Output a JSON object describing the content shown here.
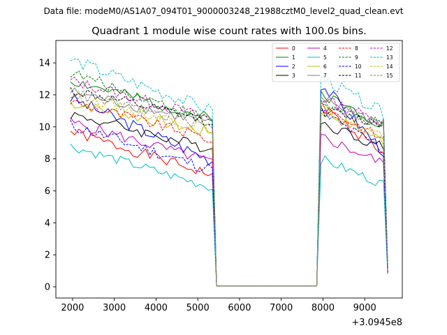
{
  "figure": {
    "suptitle": "Data file: modeM0/AS1A07_094T01_9000003248_21988cztM0_level2_quad_clean.evt"
  },
  "chart_data": {
    "type": "line",
    "title": "Quadrant 1 module wise count rates with 100.0s bins.",
    "xlabel": "",
    "ylabel": "",
    "x_offset_label": "+3.0945e8",
    "xlim": [
      1600,
      9900
    ],
    "ylim": [
      -0.7,
      15.4
    ],
    "xticks": [
      2000,
      3000,
      4000,
      5000,
      6000,
      7000,
      8000,
      9000
    ],
    "xtick_labels": [
      "2000",
      "3000",
      "4000",
      "5000",
      "6000",
      "7000",
      "8000",
      "9000"
    ],
    "yticks": [
      0,
      2,
      4,
      6,
      8,
      10,
      12,
      14
    ],
    "ytick_labels": [
      "0",
      "2",
      "4",
      "6",
      "8",
      "10",
      "12",
      "14"
    ],
    "grid": false,
    "legend": {
      "position": "top-right",
      "columns": 4
    },
    "segments": {
      "seg1": {
        "start": 1950,
        "end": 5350,
        "step": 100,
        "drop_to": 5450
      },
      "gap": {
        "start": 5450,
        "end": 7850,
        "value": 0
      },
      "seg2": {
        "start": 7950,
        "end": 9550,
        "step": 100
      }
    },
    "series": [
      {
        "name": "0",
        "color": "#ff0000",
        "linestyle": "solid",
        "level1": 9.7,
        "end1": 7.0,
        "level2": 11.3,
        "end2": 8.2,
        "wobble": 0.35,
        "seed": 1
      },
      {
        "name": "1",
        "color": "#008000",
        "linestyle": "solid",
        "level1": 12.9,
        "end1": 10.5,
        "level2": 12.1,
        "end2": 10.0,
        "wobble": 0.35,
        "seed": 2
      },
      {
        "name": "2",
        "color": "#0000ff",
        "linestyle": "solid",
        "level1": 11.8,
        "end1": 7.9,
        "level2": 12.7,
        "end2": 8.2,
        "wobble": 0.4,
        "seed": 3
      },
      {
        "name": "3",
        "color": "#000000",
        "linestyle": "solid",
        "level1": 10.8,
        "end1": 8.6,
        "level2": 10.3,
        "end2": 8.6,
        "wobble": 0.35,
        "seed": 4
      },
      {
        "name": "4",
        "color": "#bf00bf",
        "linestyle": "solid",
        "level1": 10.3,
        "end1": 7.8,
        "level2": 9.4,
        "end2": 7.6,
        "wobble": 0.35,
        "seed": 5
      },
      {
        "name": "5",
        "color": "#00bfbf",
        "linestyle": "solid",
        "level1": 8.8,
        "end1": 6.2,
        "level2": 8.0,
        "end2": 6.3,
        "wobble": 0.3,
        "seed": 6
      },
      {
        "name": "6",
        "color": "#bfbf00",
        "linestyle": "solid",
        "level1": 11.5,
        "end1": 9.6,
        "level2": 11.0,
        "end2": 9.0,
        "wobble": 0.35,
        "seed": 7
      },
      {
        "name": "7",
        "color": "#808080",
        "linestyle": "solid",
        "level1": 12.2,
        "end1": 10.2,
        "level2": 11.8,
        "end2": 10.1,
        "wobble": 0.35,
        "seed": 8
      },
      {
        "name": "8",
        "color": "#ff0000",
        "linestyle": "dashed",
        "level1": 11.6,
        "end1": 9.2,
        "level2": 11.3,
        "end2": 9.1,
        "wobble": 0.35,
        "seed": 9
      },
      {
        "name": "9",
        "color": "#008000",
        "linestyle": "dashed",
        "level1": 13.4,
        "end1": 10.4,
        "level2": 11.4,
        "end2": 10.0,
        "wobble": 0.35,
        "seed": 10
      },
      {
        "name": "10",
        "color": "#0000ff",
        "linestyle": "dashed",
        "level1": 10.1,
        "end1": 7.3,
        "level2": 10.9,
        "end2": 8.4,
        "wobble": 0.4,
        "seed": 11
      },
      {
        "name": "11",
        "color": "#000000",
        "linestyle": "dashed",
        "level1": 12.3,
        "end1": 10.3,
        "level2": 11.0,
        "end2": 10.1,
        "wobble": 0.35,
        "seed": 12
      },
      {
        "name": "12",
        "color": "#bf00bf",
        "linestyle": "dashed",
        "level1": 12.9,
        "end1": 10.5,
        "level2": 11.8,
        "end2": 10.2,
        "wobble": 0.35,
        "seed": 13
      },
      {
        "name": "13",
        "color": "#00bfbf",
        "linestyle": "dashed",
        "level1": 14.2,
        "end1": 11.0,
        "level2": 13.1,
        "end2": 10.7,
        "wobble": 0.4,
        "seed": 14
      },
      {
        "name": "14",
        "color": "#bfbf00",
        "linestyle": "dashed",
        "level1": 12.0,
        "end1": 9.8,
        "level2": 11.2,
        "end2": 9.2,
        "wobble": 0.35,
        "seed": 15
      },
      {
        "name": "15",
        "color": "#808080",
        "linestyle": "dashed",
        "level1": 12.1,
        "end1": 10.0,
        "level2": 11.6,
        "end2": 10.0,
        "wobble": 0.35,
        "seed": 16
      }
    ]
  }
}
